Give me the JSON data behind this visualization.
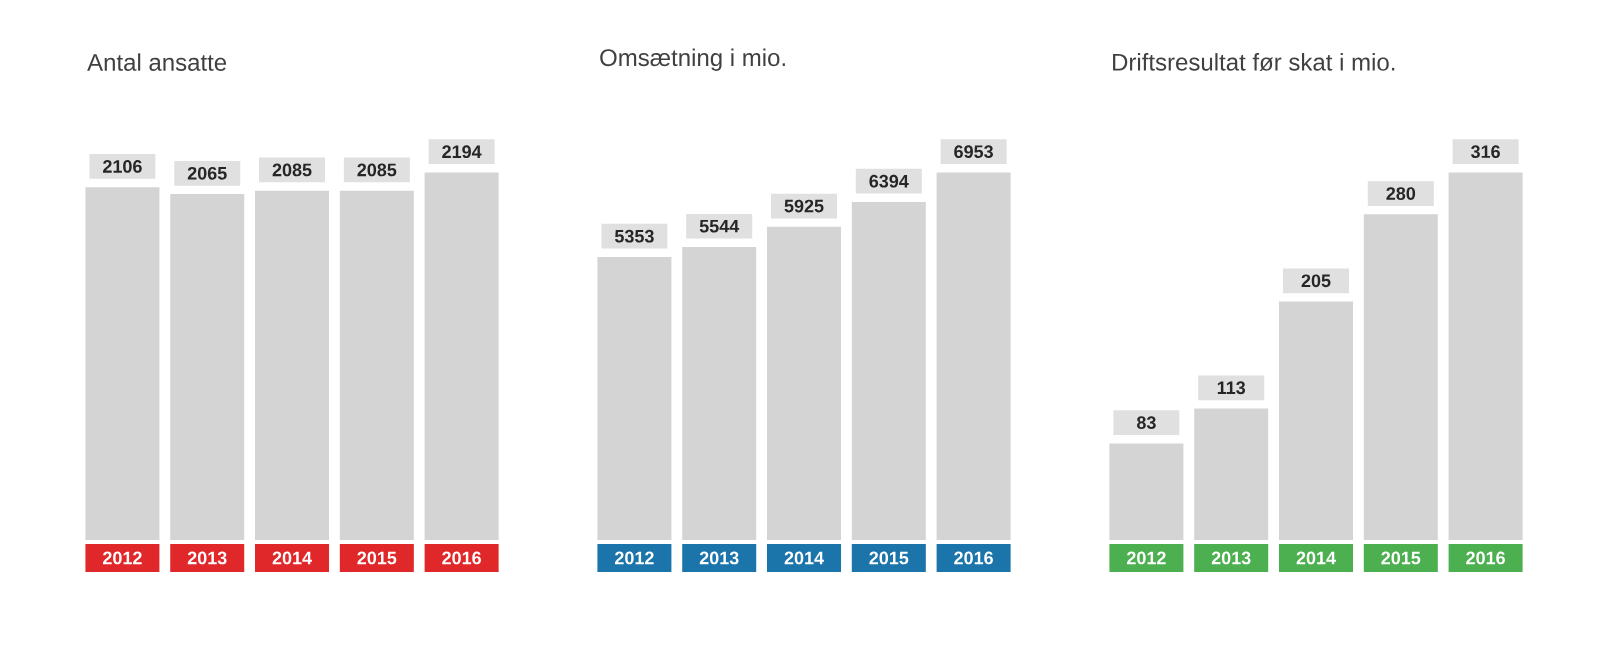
{
  "chart_data": [
    {
      "type": "bar",
      "title": "Antal ansatte",
      "categories": [
        "2012",
        "2013",
        "2014",
        "2015",
        "2016"
      ],
      "values": [
        2106,
        2065,
        2085,
        2085,
        2194
      ],
      "color": "#d4d4d4",
      "data_labels": true
    },
    {
      "type": "bar",
      "title": "Omsætning i mio.",
      "categories": [
        "2012",
        "2013",
        "2014",
        "2015",
        "2016"
      ],
      "values": [
        5353,
        5544,
        5925,
        6394,
        6953
      ],
      "color": "#d4d4d4",
      "data_labels": true
    },
    {
      "type": "bar",
      "title": "Driftsresultat før skat i mio.",
      "categories": [
        "2012",
        "2013",
        "2014",
        "2015",
        "2016"
      ],
      "values": [
        83,
        113,
        205,
        280,
        316
      ],
      "color": "#d4d4d4",
      "data_labels": true
    }
  ]
}
